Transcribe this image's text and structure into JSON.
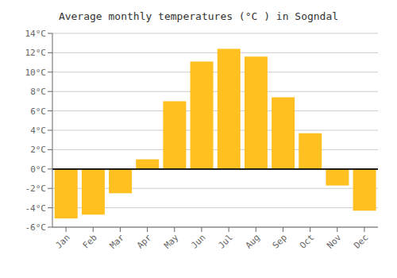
{
  "chart_data": {
    "type": "bar",
    "title": "Average monthly temperatures (°C ) in Sogndal",
    "categories": [
      "Jan",
      "Feb",
      "Mar",
      "Apr",
      "May",
      "Jun",
      "Jul",
      "Aug",
      "Sep",
      "Oct",
      "Nov",
      "Dec"
    ],
    "values": [
      -5.1,
      -4.7,
      -2.5,
      1.0,
      7.0,
      11.1,
      12.4,
      11.6,
      7.4,
      3.7,
      -1.7,
      -4.3
    ],
    "color": "#FFC020",
    "ylim": [
      -6,
      14
    ],
    "yticks": [
      {
        "value": -6,
        "label": "-6°C"
      },
      {
        "value": -4,
        "label": "-4°C"
      },
      {
        "value": -2,
        "label": "-2°C"
      },
      {
        "value": 0,
        "label": "0°C"
      },
      {
        "value": 2,
        "label": "2°C"
      },
      {
        "value": 4,
        "label": "4°C"
      },
      {
        "value": 6,
        "label": "6°C"
      },
      {
        "value": 8,
        "label": "8°C"
      },
      {
        "value": 10,
        "label": "10°C"
      },
      {
        "value": 12,
        "label": "12°C"
      },
      {
        "value": 14,
        "label": "14°C"
      }
    ],
    "grid": true
  }
}
